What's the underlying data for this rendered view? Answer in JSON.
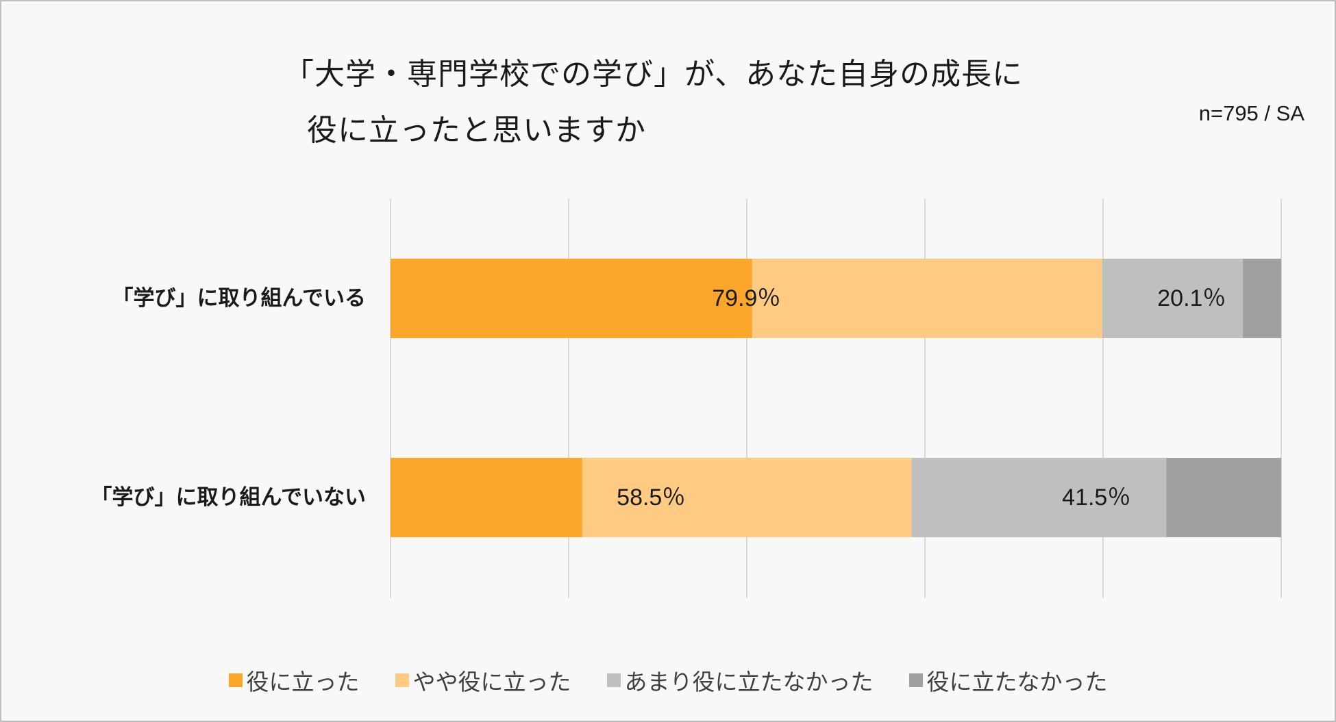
{
  "chart_data": {
    "type": "bar",
    "orientation": "horizontal",
    "stacked": "100%",
    "title": [
      "「大学・専門学校での学び」が、あなた自身の成長に",
      "役に立ったと思いますか"
    ],
    "note": "n=795 / SA",
    "categories": [
      "「学び」に取り組んでいる",
      "「学び」に取り組んでいない"
    ],
    "series": [
      {
        "name": "役に立った",
        "color": "#FAA62A",
        "values": [
          40.6,
          21.5
        ]
      },
      {
        "name": "やや役に立った",
        "color": "#FFCB82",
        "values": [
          39.3,
          37.0
        ]
      },
      {
        "name": "あまり役に立たなかった",
        "color": "#BFBFBF",
        "values": [
          15.8,
          28.6
        ]
      },
      {
        "name": "役に立たなかった",
        "color": "#A0A0A0",
        "values": [
          4.3,
          12.9
        ]
      }
    ],
    "group_labels": [
      {
        "category": 0,
        "text": "79.9％",
        "span": [
          0,
          2
        ]
      },
      {
        "category": 0,
        "text": "20.1％",
        "span": [
          2,
          4
        ]
      },
      {
        "category": 1,
        "text": "58.5％",
        "span": [
          0,
          2
        ]
      },
      {
        "category": 1,
        "text": "41.5％",
        "span": [
          2,
          4
        ]
      }
    ],
    "xlim": [
      0,
      100
    ],
    "gridlines": [
      0,
      20,
      40,
      60,
      80,
      100
    ],
    "grid": true,
    "legend_position": "bottom"
  }
}
